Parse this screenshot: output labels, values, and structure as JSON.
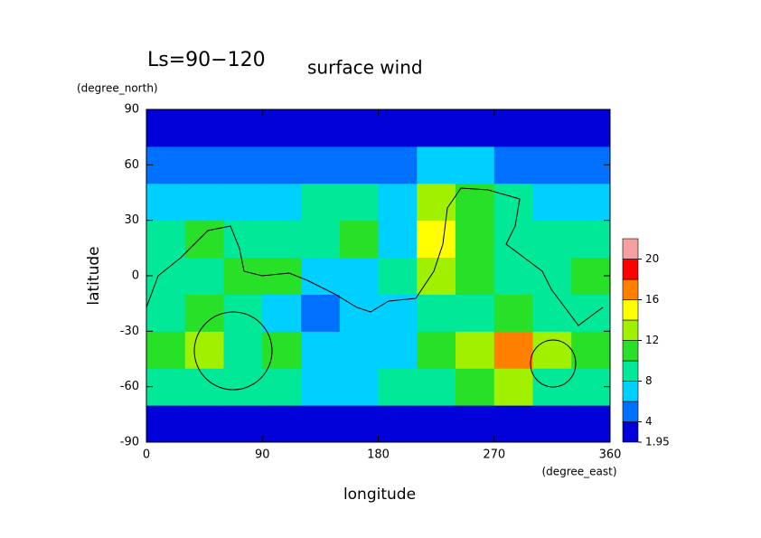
{
  "chart_data": {
    "type": "contour",
    "title": "Ls=90−120",
    "subtitle": "surface wind",
    "x_label": "longitude",
    "x_unit": "(degree_east)",
    "y_label": "latitude",
    "y_unit": "(degree_north)",
    "xlim": [
      0,
      360
    ],
    "ylim": [
      -90,
      90
    ],
    "xticks": [
      0,
      90,
      180,
      270,
      360
    ],
    "yticks": [
      -90,
      -60,
      -30,
      0,
      30,
      60,
      90
    ],
    "x": [
      15,
      45,
      75,
      105,
      135,
      165,
      195,
      225,
      255,
      285,
      315,
      345
    ],
    "y": [
      -80,
      -60,
      -40,
      -20,
      0,
      20,
      40,
      60,
      80
    ],
    "z": [
      [
        3,
        3,
        3,
        3,
        3,
        3,
        3,
        3,
        3,
        3,
        3,
        3
      ],
      [
        9,
        9,
        9,
        8,
        7,
        7,
        8,
        9,
        11,
        12,
        9,
        9
      ],
      [
        11,
        13,
        9,
        11,
        7,
        7,
        7,
        10,
        13,
        16,
        13,
        11
      ],
      [
        9,
        11,
        9,
        7,
        5,
        7,
        7,
        9,
        9,
        11,
        9,
        9
      ],
      [
        9,
        9,
        11,
        11,
        7,
        7,
        9,
        13,
        11,
        9,
        9,
        11
      ],
      [
        9,
        11,
        9,
        9,
        9,
        11,
        7,
        15,
        11,
        9,
        9,
        9
      ],
      [
        7,
        7,
        7,
        7,
        9,
        9,
        7,
        13,
        11,
        9,
        7,
        7
      ],
      [
        5,
        5,
        5,
        4,
        4,
        5,
        5,
        7,
        7,
        5,
        5,
        5
      ],
      [
        3,
        3,
        3,
        3,
        3,
        3,
        3,
        3,
        3,
        3,
        3,
        3
      ]
    ],
    "levels": [
      1.95,
      4,
      6,
      8,
      10,
      12,
      14,
      16,
      18,
      20,
      22
    ],
    "colors": [
      "#0000d8",
      "#0070ff",
      "#00d0ff",
      "#00e898",
      "#28e028",
      "#a0f000",
      "#ffff00",
      "#ff8000",
      "#ff0000",
      "#f4a0a0"
    ],
    "colorbar_ticks": [
      1.95,
      4,
      8,
      12,
      16,
      20
    ]
  }
}
